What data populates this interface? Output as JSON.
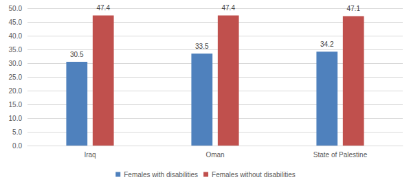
{
  "chart_data": {
    "type": "bar",
    "categories": [
      "Iraq",
      "Oman",
      "State of Palestine"
    ],
    "series": [
      {
        "name": "Females with disabilities",
        "color": "#4f81bd",
        "values": [
          30.5,
          33.5,
          34.2
        ]
      },
      {
        "name": "Females without disabilities",
        "color": "#c0504d",
        "values": [
          47.4,
          47.4,
          47.1
        ]
      }
    ],
    "ylim": [
      0,
      50
    ],
    "yticks": [
      {
        "value": 0,
        "label": "0.0"
      },
      {
        "value": 5,
        "label": "5.0"
      },
      {
        "value": 10,
        "label": "10.0"
      },
      {
        "value": 15,
        "label": "15.0"
      },
      {
        "value": 20,
        "label": "20.0"
      },
      {
        "value": 25,
        "label": "25.0"
      },
      {
        "value": 30,
        "label": "30.0"
      },
      {
        "value": 35,
        "label": "35.0"
      },
      {
        "value": 40,
        "label": "40.0"
      },
      {
        "value": 45,
        "label": "45.0"
      },
      {
        "value": 50,
        "label": "50.0"
      }
    ],
    "grid": true,
    "legend": "bottom",
    "data_labels": true
  }
}
